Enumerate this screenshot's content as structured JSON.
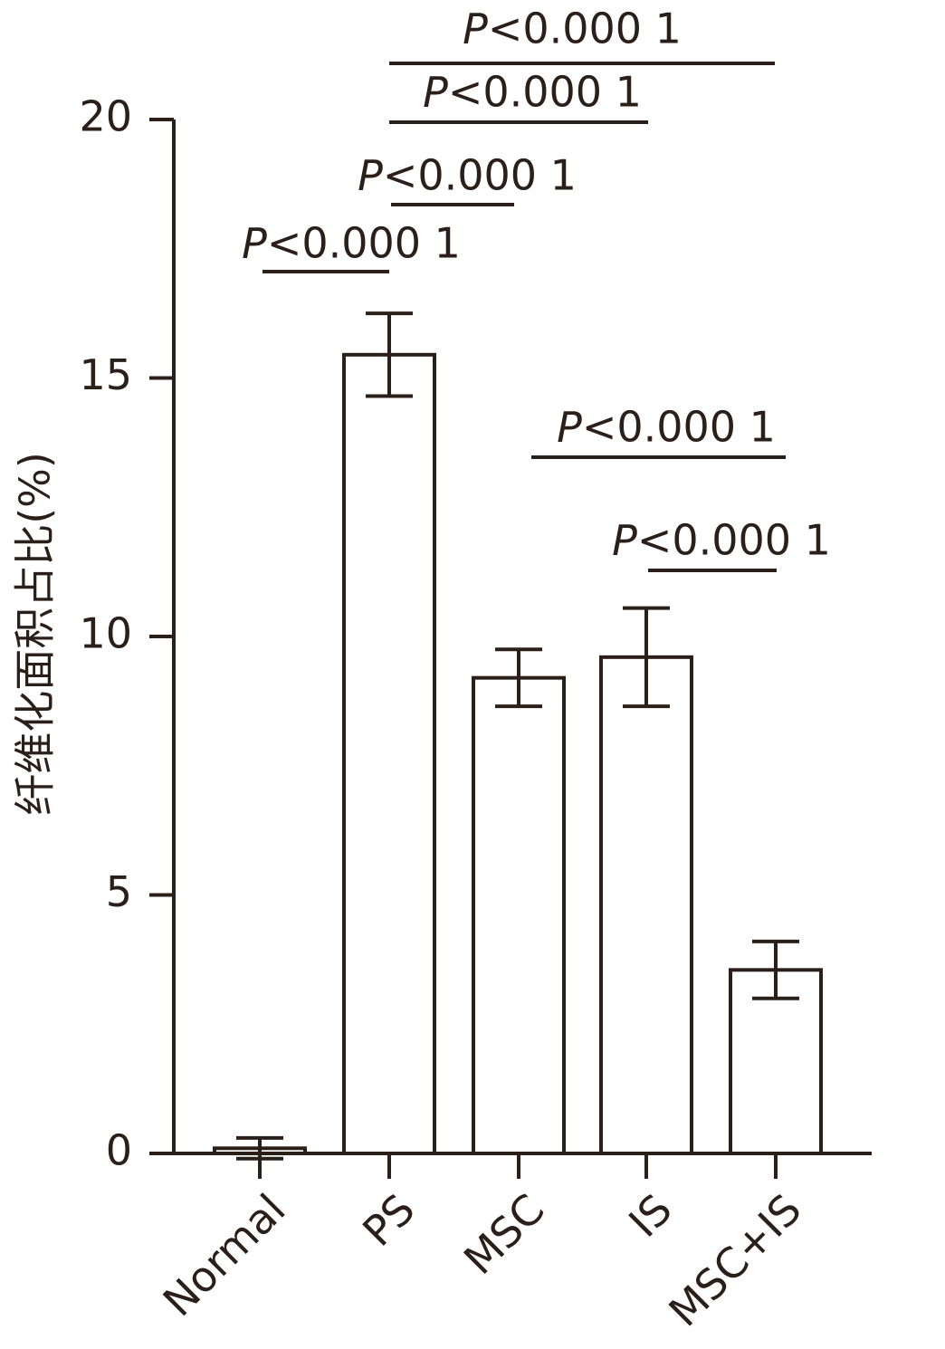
{
  "chart_data": {
    "type": "bar",
    "y_label": "纤维化面积占比(%)",
    "categories": [
      "Normal",
      "PS",
      "MSC",
      "IS",
      "MSC+IS"
    ],
    "values": [
      0.1,
      15.45,
      9.2,
      9.6,
      3.55
    ],
    "errors": [
      0.2,
      0.8,
      0.55,
      0.95,
      0.55
    ],
    "color": "#ffffff",
    "edge_color": "#2b2019",
    "ylim": [
      0,
      20
    ],
    "yticks": [
      0,
      5,
      10,
      15,
      20
    ],
    "annotations": [
      "P<0.000 1",
      "P<0.000 1",
      "P<0.000 1",
      "P<0.000 1",
      "P<0.000 1",
      "P<0.000 1"
    ]
  }
}
